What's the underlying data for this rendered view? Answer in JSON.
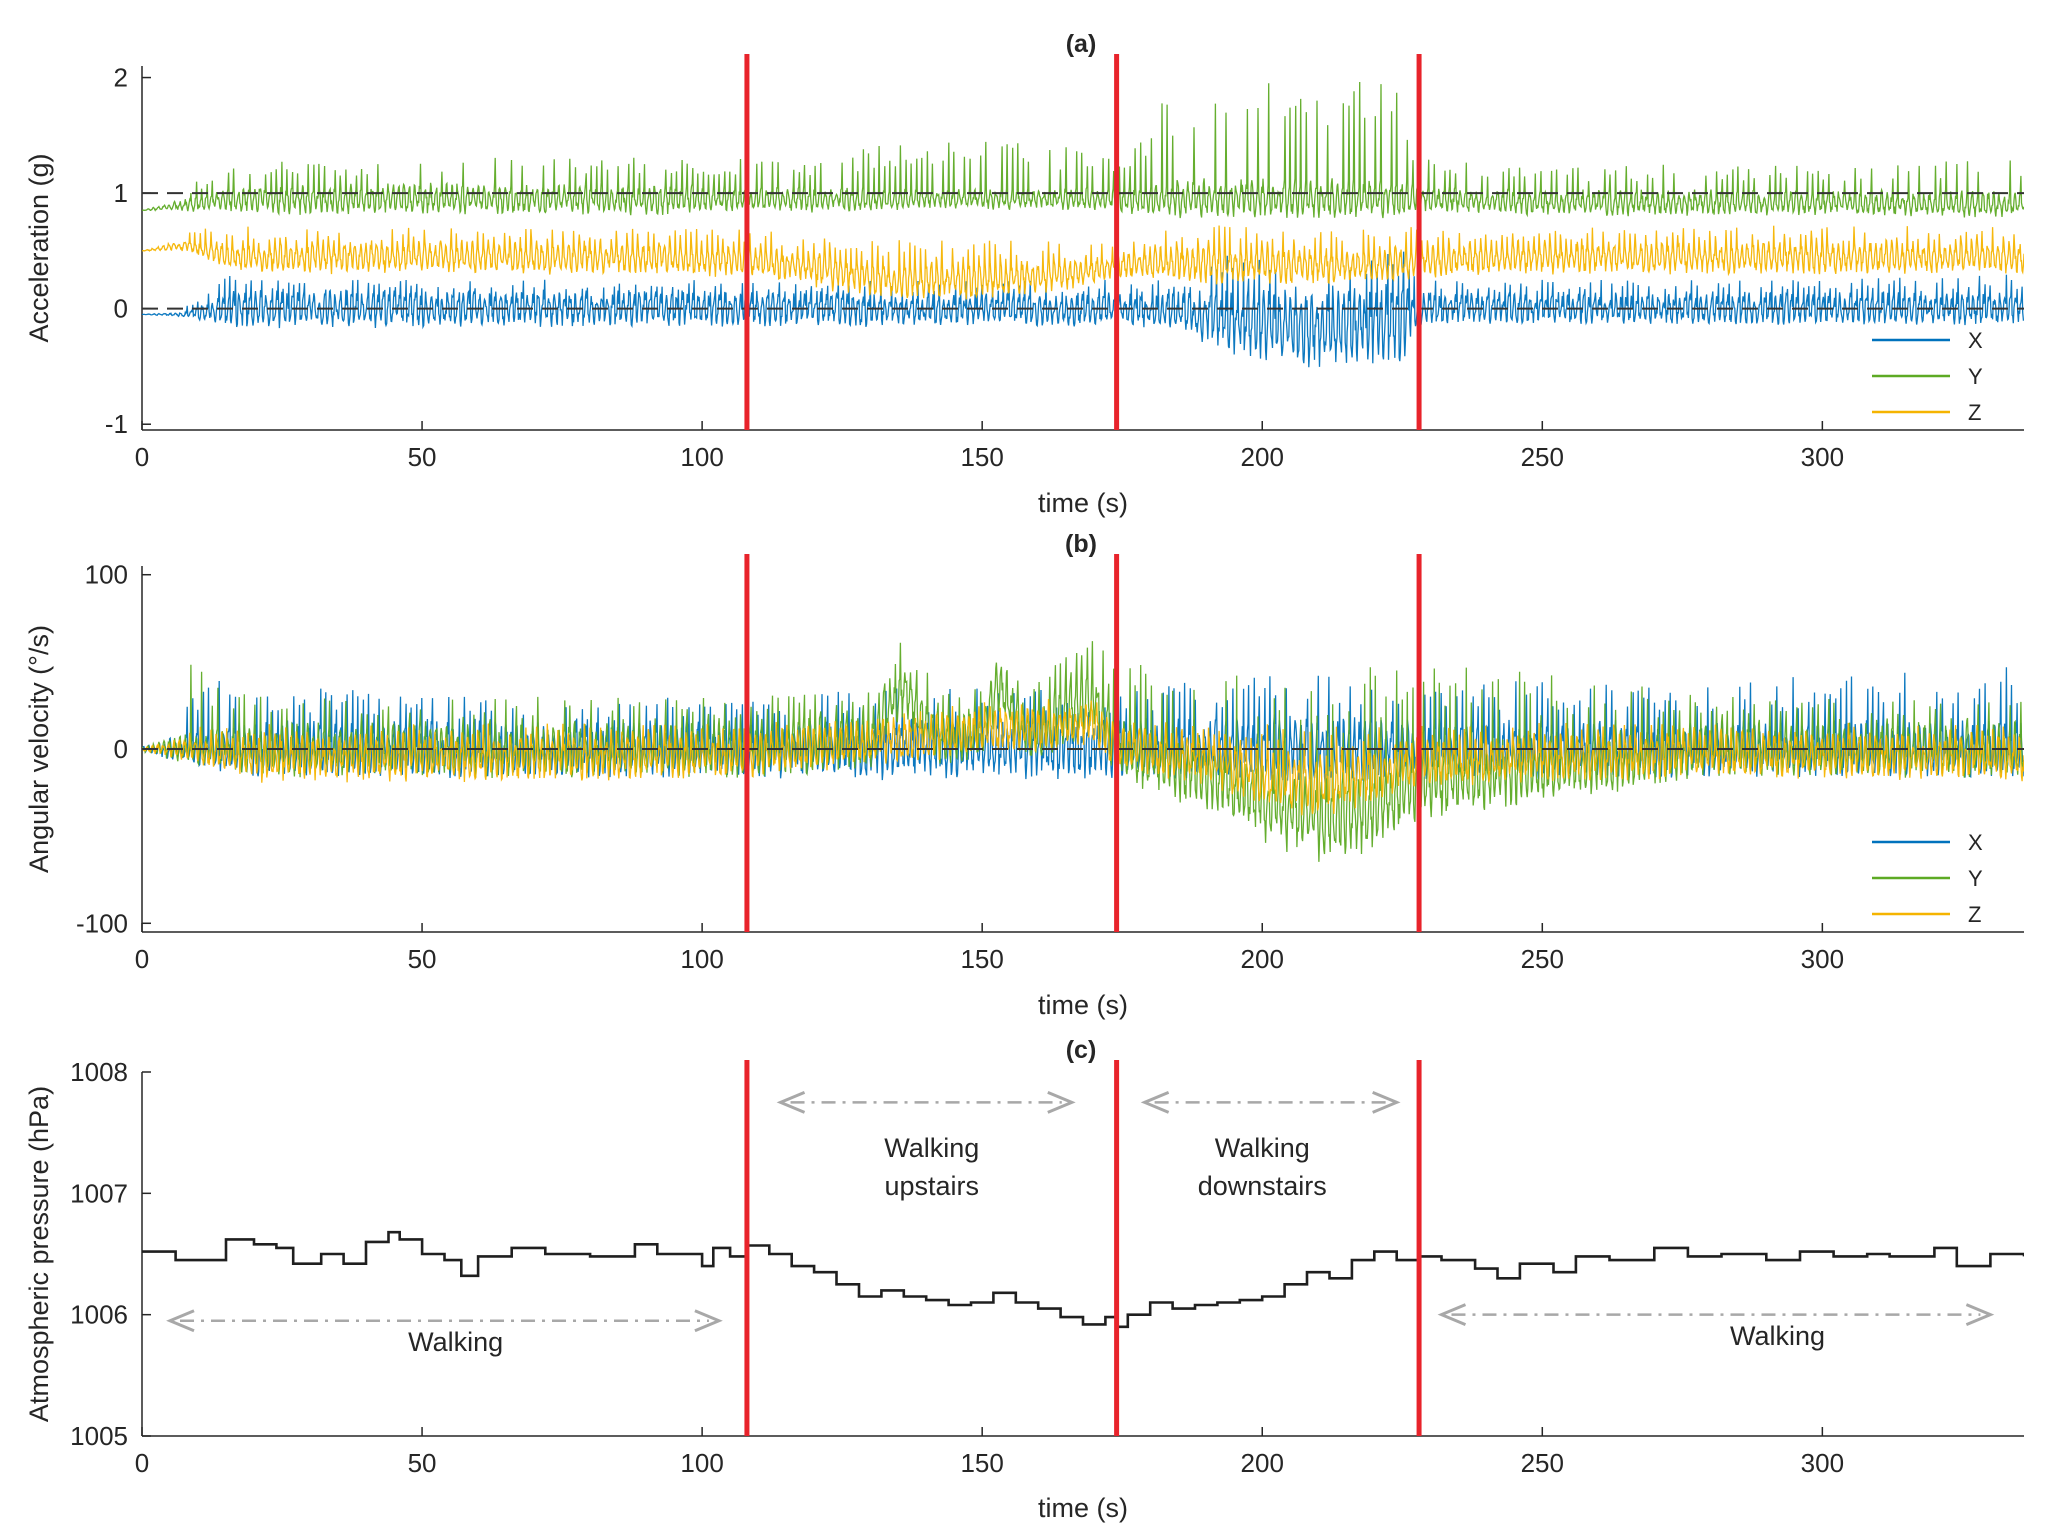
{
  "colors": {
    "x": "#0072BD",
    "y": "#5DAA24",
    "z": "#F5B400",
    "reference": "#333333",
    "boundary": "#E8232B",
    "pressure": "#1f1f1f",
    "arrow": "#A8A8A8"
  },
  "chart_data": [
    {
      "id": "a",
      "type": "line",
      "title": "(a)",
      "xlabel": "time (s)",
      "ylabel": "Acceleration (g)",
      "xlim": [
        0,
        336
      ],
      "ylim": [
        -1.05,
        2.1
      ],
      "xticks": [
        0,
        50,
        100,
        150,
        200,
        250,
        300
      ],
      "xtick_labels": [
        "0",
        "50",
        "100",
        "150",
        "200",
        "250",
        "300"
      ],
      "yticks": [
        -1,
        0,
        1,
        2
      ],
      "ytick_labels": [
        "-1",
        "0",
        "1",
        "2"
      ],
      "reference_lines": [
        0,
        1
      ],
      "boundaries": [
        108,
        174,
        228
      ],
      "legend": {
        "position": "bottom-right",
        "entries": [
          "X",
          "Y",
          "Z"
        ]
      },
      "series": [
        {
          "name": "X",
          "x": [
            0,
            8,
            17,
            30,
            50,
            70,
            90,
            108,
            120,
            135,
            150,
            165,
            174,
            185,
            195,
            205,
            215,
            225,
            228,
            250,
            275,
            300,
            336
          ],
          "values": [
            -0.05,
            -0.05,
            0.0,
            0.0,
            0.0,
            0.0,
            0.0,
            0.0,
            0.0,
            -0.02,
            0.0,
            -0.02,
            0.0,
            -0.03,
            -0.1,
            -0.15,
            -0.15,
            -0.12,
            0.0,
            0.0,
            0.0,
            0.0,
            0.0
          ],
          "amplitude": [
            0.0,
            0.02,
            0.15,
            0.14,
            0.14,
            0.14,
            0.14,
            0.13,
            0.13,
            0.12,
            0.12,
            0.12,
            0.12,
            0.15,
            0.25,
            0.3,
            0.3,
            0.3,
            0.12,
            0.12,
            0.12,
            0.12,
            0.12
          ],
          "spike_max": [
            0.0,
            0.05,
            0.35,
            0.25,
            0.25,
            0.25,
            0.25,
            0.25,
            0.25,
            0.25,
            0.25,
            0.25,
            0.25,
            0.25,
            0.55,
            0.55,
            0.55,
            0.55,
            0.25,
            0.25,
            0.25,
            0.25,
            0.3
          ]
        },
        {
          "name": "Y",
          "x": [
            0,
            8,
            17,
            30,
            50,
            70,
            90,
            108,
            120,
            135,
            150,
            165,
            174,
            185,
            195,
            205,
            215,
            225,
            228,
            250,
            275,
            300,
            336
          ],
          "values": [
            0.85,
            0.9,
            0.95,
            0.95,
            0.95,
            0.95,
            0.95,
            0.95,
            0.95,
            0.95,
            0.95,
            0.95,
            0.95,
            0.95,
            0.95,
            0.95,
            0.95,
            0.95,
            0.95,
            0.92,
            0.92,
            0.92,
            0.9
          ],
          "amplitude": [
            0.0,
            0.05,
            0.1,
            0.12,
            0.12,
            0.12,
            0.12,
            0.1,
            0.1,
            0.08,
            0.08,
            0.08,
            0.1,
            0.15,
            0.15,
            0.15,
            0.15,
            0.15,
            0.1,
            0.1,
            0.1,
            0.1,
            0.1
          ],
          "spike_max": [
            0.85,
            1.05,
            1.35,
            1.3,
            1.3,
            1.35,
            1.3,
            1.3,
            1.3,
            1.45,
            1.5,
            1.4,
            1.3,
            1.95,
            1.95,
            2.0,
            2.0,
            2.0,
            1.3,
            1.25,
            1.25,
            1.25,
            1.3
          ]
        },
        {
          "name": "Z",
          "x": [
            0,
            8,
            17,
            30,
            50,
            70,
            90,
            108,
            120,
            135,
            150,
            165,
            174,
            185,
            195,
            205,
            215,
            225,
            228,
            250,
            275,
            300,
            336
          ],
          "values": [
            0.5,
            0.55,
            0.45,
            0.45,
            0.45,
            0.45,
            0.45,
            0.42,
            0.35,
            0.25,
            0.25,
            0.3,
            0.38,
            0.4,
            0.38,
            0.38,
            0.38,
            0.38,
            0.42,
            0.45,
            0.45,
            0.45,
            0.45
          ],
          "amplitude": [
            0.0,
            0.05,
            0.12,
            0.13,
            0.13,
            0.13,
            0.13,
            0.13,
            0.15,
            0.15,
            0.15,
            0.12,
            0.1,
            0.15,
            0.15,
            0.15,
            0.15,
            0.15,
            0.13,
            0.13,
            0.13,
            0.13,
            0.13
          ],
          "spike_max": [
            0.5,
            0.7,
            0.72,
            0.7,
            0.7,
            0.7,
            0.7,
            0.7,
            0.65,
            0.6,
            0.6,
            0.6,
            0.6,
            0.72,
            0.72,
            0.72,
            0.72,
            0.72,
            0.7,
            0.7,
            0.72,
            0.72,
            0.72
          ]
        }
      ]
    },
    {
      "id": "b",
      "type": "line",
      "title": "(b)",
      "xlabel": "time (s)",
      "ylabel": "Angular velocity (°/s)",
      "xlim": [
        0,
        336
      ],
      "ylim": [
        -105,
        105
      ],
      "xticks": [
        0,
        50,
        100,
        150,
        200,
        250,
        300
      ],
      "xtick_labels": [
        "0",
        "50",
        "100",
        "150",
        "200",
        "250",
        "300"
      ],
      "yticks": [
        -100,
        0,
        100
      ],
      "ytick_labels": [
        "-100",
        "0",
        "100"
      ],
      "reference_lines": [
        0
      ],
      "boundaries": [
        108,
        174,
        228
      ],
      "legend": {
        "position": "bottom-right",
        "entries": [
          "X",
          "Y",
          "Z"
        ]
      },
      "series": [
        {
          "name": "X",
          "x": [
            0,
            8,
            20,
            50,
            108,
            130,
            150,
            174,
            190,
            210,
            228,
            280,
            336
          ],
          "values": [
            0,
            0,
            0,
            0,
            0,
            0,
            0,
            0,
            0,
            0,
            0,
            0,
            0
          ],
          "amplitude": [
            1,
            8,
            14,
            14,
            14,
            15,
            15,
            15,
            15,
            18,
            15,
            14,
            14
          ],
          "spike_max": [
            2,
            40,
            40,
            30,
            30,
            35,
            35,
            35,
            40,
            45,
            40,
            40,
            48
          ]
        },
        {
          "name": "Y",
          "x": [
            0,
            8,
            20,
            50,
            108,
            130,
            136,
            142,
            150,
            153,
            158,
            170,
            174,
            190,
            200,
            210,
            220,
            228,
            280,
            336
          ],
          "values": [
            0,
            0,
            0,
            0,
            0,
            5,
            35,
            5,
            10,
            35,
            8,
            30,
            0,
            -15,
            -30,
            -40,
            -35,
            -20,
            0,
            0
          ],
          "amplitude": [
            1,
            8,
            14,
            14,
            14,
            15,
            15,
            15,
            15,
            15,
            15,
            18,
            15,
            18,
            20,
            22,
            20,
            18,
            14,
            14
          ],
          "spike_max": [
            2,
            50,
            35,
            30,
            30,
            35,
            65,
            40,
            40,
            52,
            40,
            65,
            50,
            52,
            45,
            40,
            50,
            55,
            30,
            30
          ]
        },
        {
          "name": "Z",
          "x": [
            0,
            8,
            20,
            50,
            108,
            135,
            150,
            170,
            174,
            190,
            200,
            210,
            228,
            280,
            336
          ],
          "values": [
            0,
            0,
            -5,
            -5,
            -3,
            5,
            10,
            15,
            0,
            -5,
            -15,
            -20,
            -8,
            -2,
            -5
          ],
          "amplitude": [
            1,
            6,
            12,
            12,
            12,
            12,
            12,
            12,
            12,
            14,
            16,
            18,
            12,
            12,
            12
          ],
          "spike_max": [
            2,
            15,
            15,
            15,
            15,
            20,
            28,
            30,
            20,
            15,
            15,
            15,
            15,
            15,
            15
          ]
        }
      ]
    },
    {
      "id": "c",
      "type": "line",
      "title": "(c)",
      "xlabel": "time (s)",
      "ylabel": "Atmospheric pressure (hPa)",
      "xlim": [
        0,
        336
      ],
      "ylim": [
        1005,
        1008
      ],
      "xticks": [
        0,
        50,
        100,
        150,
        200,
        250,
        300
      ],
      "xtick_labels": [
        "0",
        "50",
        "100",
        "150",
        "200",
        "250",
        "300"
      ],
      "yticks": [
        1005,
        1006,
        1007,
        1008
      ],
      "ytick_labels": [
        "1005",
        "1006",
        "1007",
        "1008"
      ],
      "boundaries": [
        108,
        174,
        228
      ],
      "series": [
        {
          "name": "pressure",
          "step": true,
          "x": [
            0,
            6,
            15,
            20,
            24,
            27,
            32,
            36,
            40,
            44,
            46,
            50,
            54,
            57,
            60,
            66,
            72,
            80,
            88,
            92,
            100,
            102,
            105,
            108,
            112,
            116,
            120,
            124,
            128,
            132,
            136,
            140,
            144,
            148,
            152,
            156,
            160,
            164,
            168,
            172,
            174,
            176,
            180,
            184,
            188,
            192,
            196,
            200,
            204,
            208,
            212,
            216,
            220,
            224,
            228,
            232,
            238,
            242,
            246,
            252,
            256,
            262,
            270,
            276,
            282,
            290,
            296,
            302,
            308,
            312,
            320,
            324,
            330,
            336
          ],
          "values": [
            1006.52,
            1006.45,
            1006.62,
            1006.58,
            1006.55,
            1006.42,
            1006.5,
            1006.42,
            1006.6,
            1006.68,
            1006.62,
            1006.5,
            1006.45,
            1006.32,
            1006.48,
            1006.55,
            1006.5,
            1006.48,
            1006.58,
            1006.5,
            1006.4,
            1006.55,
            1006.48,
            1006.57,
            1006.5,
            1006.4,
            1006.35,
            1006.25,
            1006.15,
            1006.2,
            1006.15,
            1006.12,
            1006.08,
            1006.1,
            1006.18,
            1006.1,
            1006.05,
            1005.98,
            1005.92,
            1005.98,
            1005.9,
            1006.0,
            1006.1,
            1006.05,
            1006.08,
            1006.1,
            1006.12,
            1006.15,
            1006.25,
            1006.35,
            1006.3,
            1006.45,
            1006.52,
            1006.45,
            1006.48,
            1006.45,
            1006.38,
            1006.3,
            1006.42,
            1006.35,
            1006.48,
            1006.45,
            1006.55,
            1006.48,
            1006.5,
            1006.45,
            1006.52,
            1006.48,
            1006.5,
            1006.48,
            1006.55,
            1006.4,
            1006.5,
            1006.48
          ]
        }
      ],
      "annotations": [
        {
          "lines": [
            "Walking"
          ],
          "x": 56,
          "y": 1005.7,
          "arrow_from": 5,
          "arrow_to": 103,
          "arrow_y": 1005.95
        },
        {
          "lines": [
            "Walking",
            "upstairs"
          ],
          "x": 141,
          "y": 1007.3,
          "arrow_from": 114,
          "arrow_to": 166,
          "arrow_y": 1007.75
        },
        {
          "lines": [
            "Walking",
            "downstairs"
          ],
          "x": 200,
          "y": 1007.3,
          "arrow_from": 179,
          "arrow_to": 224,
          "arrow_y": 1007.75
        },
        {
          "lines": [
            "Walking"
          ],
          "x": 292,
          "y": 1005.75,
          "arrow_from": 232,
          "arrow_to": 330,
          "arrow_y": 1006.0
        }
      ]
    }
  ]
}
